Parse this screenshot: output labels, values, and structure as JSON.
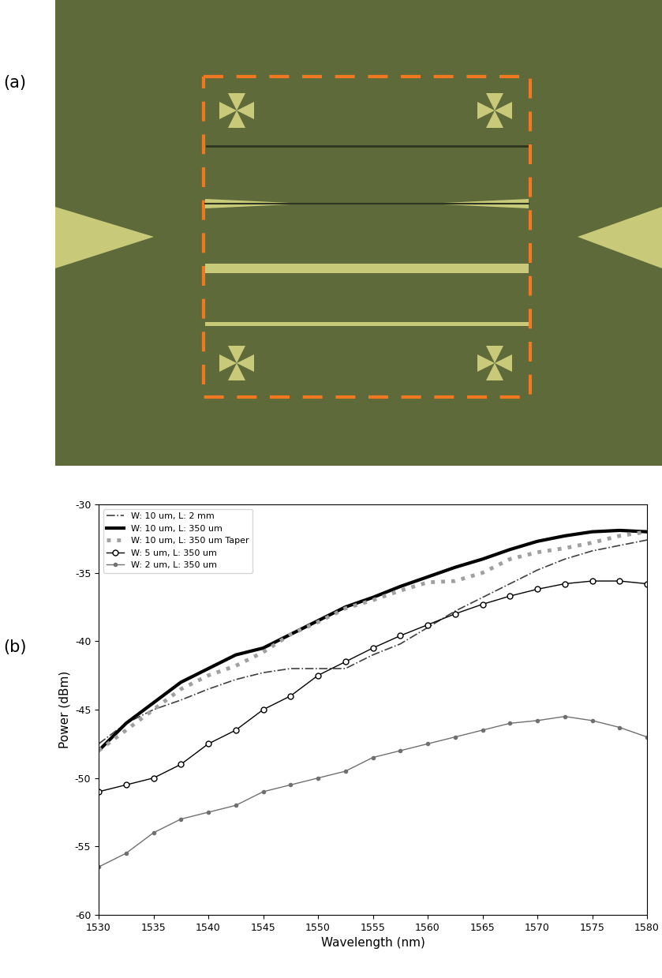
{
  "panel_labels": [
    "(a)",
    "(b)"
  ],
  "chart_data": {
    "type": "line",
    "x_label": "Wavelength (nm)",
    "y_label": "Power (dBm)",
    "x": [
      1530,
      1532.5,
      1535,
      1537.5,
      1540,
      1542.5,
      1545,
      1547.5,
      1550,
      1552.5,
      1555,
      1557.5,
      1560,
      1562.5,
      1565,
      1567.5,
      1570,
      1572.5,
      1575,
      1577.5,
      1580
    ],
    "series": [
      {
        "name": "W: 10 um, L: 2 mm",
        "color": "#404040",
        "line_style": "dashdot",
        "marker": "none",
        "values": [
          -47.5,
          -46,
          -45,
          -44.3,
          -43.5,
          -42.8,
          -42.3,
          -42.0,
          -42.0,
          -42.0,
          -41.0,
          -40.2,
          -39.0,
          -37.8,
          -36.8,
          -35.8,
          -34.8,
          -34.0,
          -33.4,
          -33.0,
          -32.6
        ]
      },
      {
        "name": "W: 10 um, L: 350 um",
        "color": "#000000",
        "line_style": "thick",
        "marker": "none",
        "values": [
          -48,
          -46,
          -44.5,
          -43,
          -42,
          -41,
          -40.5,
          -39.5,
          -38.5,
          -37.5,
          -36.8,
          -36,
          -35.3,
          -34.6,
          -34,
          -33.3,
          -32.7,
          -32.3,
          -32,
          -31.9,
          -32
        ]
      },
      {
        "name": "W: 10 um, L: 350 um Taper",
        "color": "#a0a0a0",
        "line_style": "dotted",
        "marker": "none",
        "values": [
          -48,
          -46.5,
          -45,
          -43.5,
          -42.5,
          -41.8,
          -40.8,
          -39.5,
          -38.6,
          -37.6,
          -37,
          -36.3,
          -35.7,
          -35.6,
          -35.0,
          -34.0,
          -33.5,
          -33.2,
          -32.8,
          -32.3,
          -32
        ]
      },
      {
        "name": "W: 5 um, L: 350 um",
        "color": "#000000",
        "line_style": "solid",
        "marker": "circle",
        "values": [
          -51,
          -50.5,
          -50,
          -49,
          -47.5,
          -46.5,
          -45,
          -44,
          -42.5,
          -41.5,
          -40.5,
          -39.6,
          -38.8,
          -38,
          -37.3,
          -36.7,
          -36.2,
          -35.8,
          -35.6,
          -35.6,
          -35.8
        ]
      },
      {
        "name": "W: 2 um, L: 350 um",
        "color": "#707070",
        "line_style": "solid",
        "marker": "point",
        "values": [
          -56.5,
          -55.5,
          -54,
          -53,
          -52.5,
          -52,
          -51,
          -50.5,
          -50,
          -49.5,
          -48.5,
          -48,
          -47.5,
          -47,
          -46.5,
          -46,
          -45.8,
          -45.5,
          -45.8,
          -46.3,
          -47
        ]
      }
    ],
    "xlim": [
      1530,
      1580
    ],
    "xticks": [
      1530,
      1535,
      1540,
      1545,
      1550,
      1555,
      1560,
      1565,
      1570,
      1575,
      1580
    ],
    "ylim": [
      -60,
      -30
    ],
    "yticks": [
      -60,
      -55,
      -50,
      -45,
      -40,
      -35,
      -30
    ],
    "legend": "upper left",
    "grid": false
  }
}
